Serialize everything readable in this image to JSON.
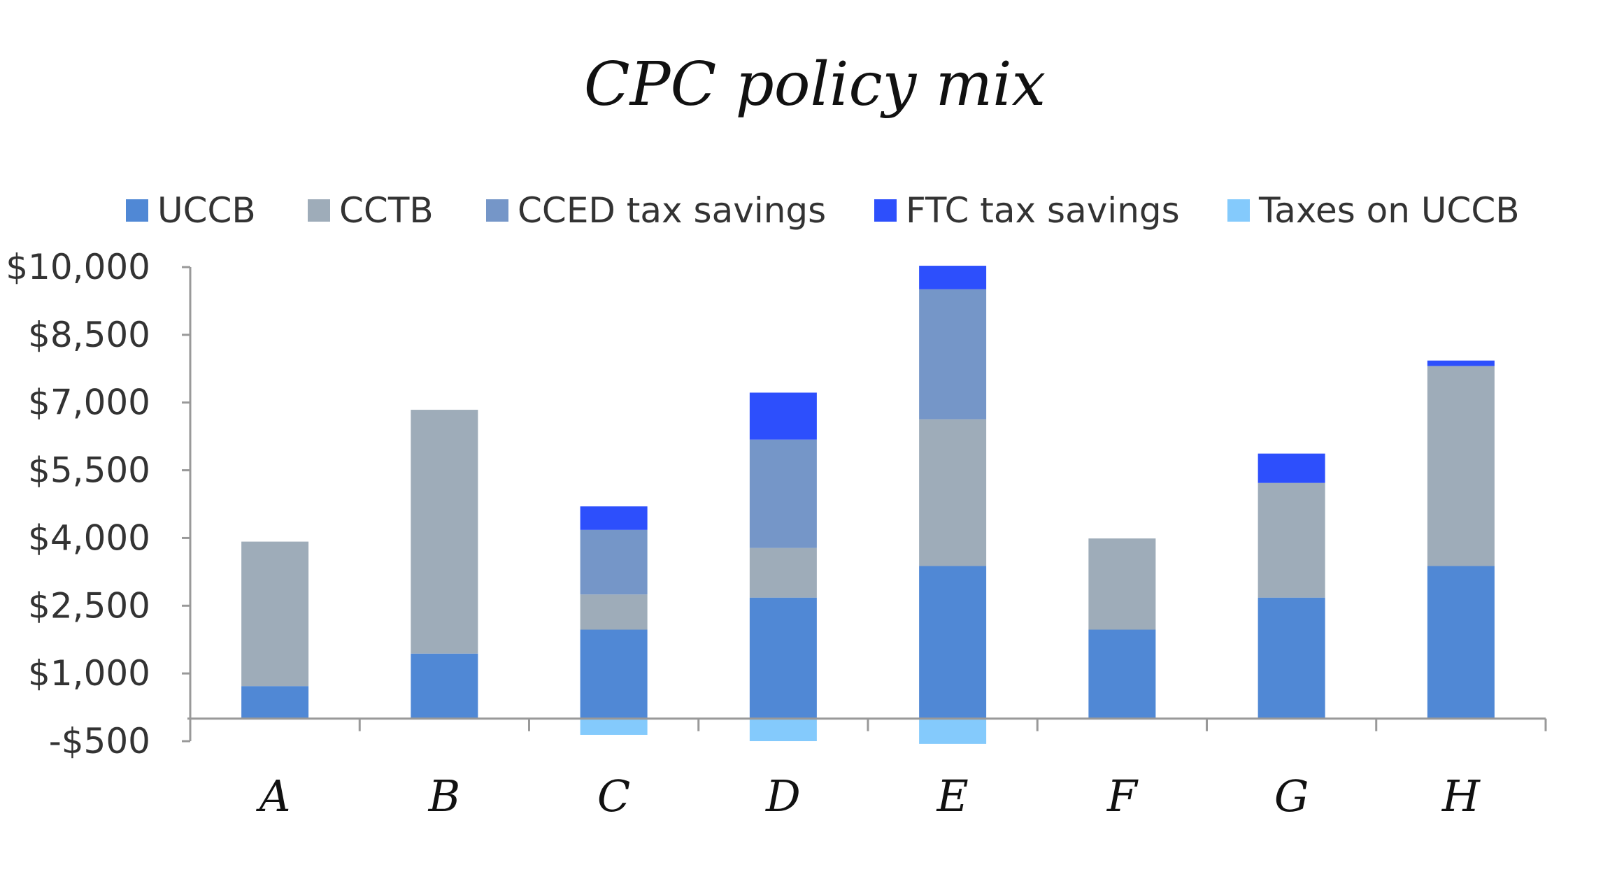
{
  "chart_data": {
    "type": "bar",
    "stacked": true,
    "title": "CPC policy mix",
    "xlabel": "",
    "ylabel": "",
    "categories": [
      "A",
      "B",
      "C",
      "D",
      "E",
      "F",
      "G",
      "H"
    ],
    "series": [
      {
        "name": "UCCB",
        "color": "#5088d5",
        "values": [
          720,
          1440,
          1970,
          2680,
          3380,
          1970,
          2680,
          3380
        ]
      },
      {
        "name": "CCTB",
        "color": "#9eacb9",
        "values": [
          3200,
          5400,
          780,
          1100,
          3250,
          2020,
          2540,
          4430
        ]
      },
      {
        "name": "CCED tax savings",
        "color": "#7596c8",
        "values": [
          0,
          0,
          1430,
          2400,
          2880,
          0,
          0,
          0
        ]
      },
      {
        "name": "FTC tax savings",
        "color": "#2d4ffc",
        "values": [
          0,
          0,
          520,
          1040,
          520,
          0,
          650,
          120
        ]
      },
      {
        "name": "Taxes on UCCB",
        "color": "#84cafc",
        "values": [
          0,
          0,
          -360,
          -500,
          -560,
          0,
          0,
          0
        ]
      }
    ],
    "yticks": [
      "$10,000",
      "$8,500",
      "$7,000",
      "$5,500",
      "$4,000",
      "$2,500",
      "$1,000",
      "-$500"
    ],
    "ytick_values": [
      10000,
      8500,
      7000,
      5500,
      4000,
      2500,
      1000,
      -500
    ],
    "ylim": [
      -500,
      10000
    ],
    "grid": false,
    "legend_position": "top"
  }
}
